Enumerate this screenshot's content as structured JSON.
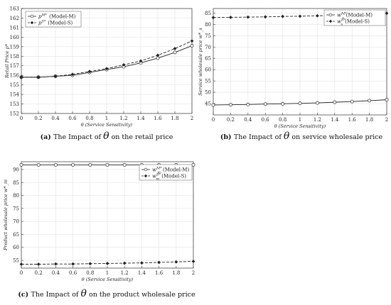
{
  "chart_data": [
    {
      "type": "line",
      "caption_tag": "(a)",
      "caption_pre": "The Impact of",
      "caption_sym": "θ",
      "caption_post": "on the retail price",
      "xlabel": "θ (Service Sensitivity)",
      "ylabel": "Retail Price p*",
      "xlim": [
        0,
        2
      ],
      "ylim": [
        152,
        163
      ],
      "x_ticks": [
        "0",
        "0.2",
        "0.4",
        "0.6",
        "0.8",
        "1",
        "1.2",
        "1.4",
        "1.6",
        "1.8",
        "2"
      ],
      "y_ticks": [
        "152",
        "153",
        "154",
        "155",
        "156",
        "157",
        "158",
        "159",
        "160",
        "161",
        "162",
        "163"
      ],
      "grid": true,
      "legend_position": "top-left",
      "x": [
        0,
        0.2,
        0.4,
        0.6,
        0.8,
        1.0,
        1.2,
        1.4,
        1.6,
        1.8,
        2.0
      ],
      "series": [
        {
          "name": "p^{M*} (Model-M)",
          "style": "solid",
          "marker": "open-circle",
          "values": [
            155.8,
            155.8,
            155.9,
            156.0,
            156.3,
            156.6,
            156.9,
            157.3,
            157.8,
            158.4,
            159.1
          ]
        },
        {
          "name": "p^{S*} (Model-S)",
          "style": "dashed",
          "marker": "filled-diamond",
          "values": [
            155.8,
            155.8,
            155.9,
            156.1,
            156.4,
            156.7,
            157.1,
            157.5,
            158.1,
            158.8,
            159.6
          ]
        }
      ]
    },
    {
      "type": "line",
      "caption_tag": "(b)",
      "caption_pre": "The Impact of",
      "caption_sym": "θ",
      "caption_post": "on service wholesale price",
      "xlabel": "θ (Service Sensitivity)",
      "ylabel": "Service wholesale price w*_s",
      "xlim": [
        0,
        2
      ],
      "ylim": [
        40,
        87
      ],
      "x_ticks": [
        "0",
        "0.2",
        "0.4",
        "0.6",
        "0.8",
        "1",
        "1.2",
        "1.4",
        "1.6",
        "1.8",
        "2"
      ],
      "y_ticks": [
        "45",
        "50",
        "55",
        "60",
        "65",
        "70",
        "75",
        "80",
        "85"
      ],
      "grid": true,
      "legend_position": "top-right",
      "x": [
        0,
        0.2,
        0.4,
        0.6,
        0.8,
        1.0,
        1.2,
        1.4,
        1.6,
        1.8,
        2.0
      ],
      "series": [
        {
          "name": "w_s^{M*} (Model-M)",
          "style": "solid",
          "marker": "open-circle",
          "values": [
            44.4,
            44.5,
            44.6,
            44.8,
            44.9,
            45.1,
            45.3,
            45.6,
            45.9,
            46.3,
            46.7
          ]
        },
        {
          "name": "w_s^{S*} (Model-S)",
          "style": "dashed",
          "marker": "filled-diamond",
          "values": [
            83.0,
            83.1,
            83.2,
            83.3,
            83.5,
            83.6,
            83.8,
            84.0,
            84.3,
            84.6,
            84.9
          ]
        }
      ]
    },
    {
      "type": "line",
      "caption_tag": "(c)",
      "caption_pre": "The Impact of",
      "caption_sym": "θ",
      "caption_post": "on the product wholesale price",
      "xlabel": "θ (Service Sensitivity)",
      "ylabel": "Product wholesale price w*_m",
      "xlim": [
        0,
        2
      ],
      "ylim": [
        52,
        93
      ],
      "x_ticks": [
        "0",
        "0.2",
        "0.4",
        "0.6",
        "0.8",
        "1",
        "1.2",
        "1.4",
        "1.6",
        "1.8",
        "2"
      ],
      "y_ticks": [
        "55",
        "60",
        "65",
        "70",
        "75",
        "80",
        "85",
        "90"
      ],
      "grid": true,
      "legend_position": "top-right",
      "x": [
        0,
        0.2,
        0.4,
        0.6,
        0.8,
        1.0,
        1.2,
        1.4,
        1.6,
        1.8,
        2.0
      ],
      "series": [
        {
          "name": "w_m^{M*} (Model-M)",
          "style": "solid",
          "marker": "open-circle",
          "values": [
            91.8,
            91.8,
            91.8,
            91.8,
            91.8,
            91.8,
            91.8,
            91.8,
            91.8,
            91.8,
            91.8
          ]
        },
        {
          "name": "w_m^{S*} (Model-S)",
          "style": "dashed",
          "marker": "filled-diamond",
          "values": [
            53.5,
            53.5,
            53.6,
            53.6,
            53.7,
            53.8,
            53.9,
            54.0,
            54.2,
            54.4,
            54.6
          ]
        }
      ]
    }
  ]
}
